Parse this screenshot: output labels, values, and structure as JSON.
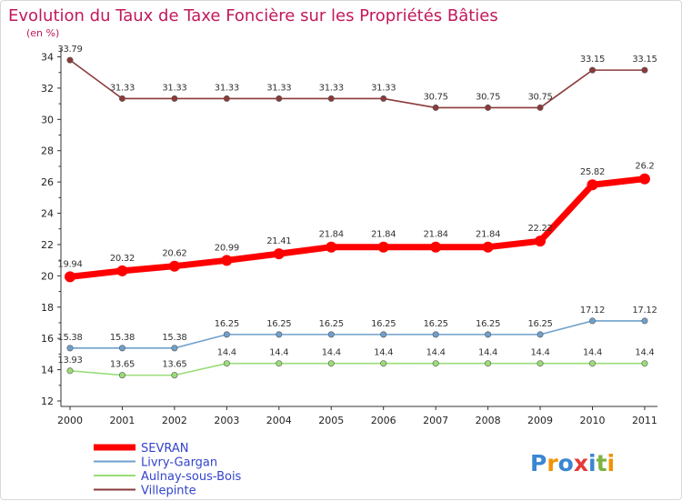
{
  "chart_data": {
    "type": "line",
    "title": "Evolution du Taux de Taxe Foncière sur les Propriétés Bâties",
    "ylabel": "(en %)",
    "xlabel": "",
    "categories": [
      "2000",
      "2001",
      "2002",
      "2003",
      "2004",
      "2005",
      "2006",
      "2007",
      "2008",
      "2009",
      "2010",
      "2011"
    ],
    "y_ticks": [
      12,
      14,
      16,
      18,
      20,
      22,
      24,
      26,
      28,
      30,
      32,
      34
    ],
    "ylim": [
      12,
      34
    ],
    "series": [
      {
        "name": "SEVRAN",
        "color": "#ff0000",
        "emphasis": true,
        "values": [
          19.94,
          20.32,
          20.62,
          20.99,
          21.41,
          21.84,
          21.84,
          21.84,
          21.84,
          22.22,
          25.82,
          26.2
        ],
        "labels": [
          "19.94",
          "20.32",
          "20.62",
          "20.99",
          "21.41",
          "21.84",
          "21.84",
          "21.84",
          "21.84",
          "22.22",
          "25.82",
          "26.2"
        ]
      },
      {
        "name": "Livry-Gargan",
        "color": "#6fa0cc",
        "emphasis": false,
        "values": [
          15.38,
          15.38,
          15.38,
          16.25,
          16.25,
          16.25,
          16.25,
          16.25,
          16.25,
          16.25,
          17.12,
          17.12
        ],
        "labels": [
          "15.38",
          "15.38",
          "15.38",
          "16.25",
          "16.25",
          "16.25",
          "16.25",
          "16.25",
          "16.25",
          "16.25",
          "17.12",
          "17.12"
        ]
      },
      {
        "name": "Aulnay-sous-Bois",
        "color": "#99dd77",
        "emphasis": false,
        "values": [
          13.93,
          13.65,
          13.65,
          14.4,
          14.4,
          14.4,
          14.4,
          14.4,
          14.4,
          14.4,
          14.4,
          14.4
        ],
        "labels": [
          "13.93",
          "13.65",
          "13.65",
          "14.4",
          "14.4",
          "14.4",
          "14.4",
          "14.4",
          "14.4",
          "14.4",
          "14.4",
          "14.4"
        ]
      },
      {
        "name": "Villepinte",
        "color": "#8b3a3a",
        "emphasis": false,
        "values": [
          33.79,
          31.33,
          31.33,
          31.33,
          31.33,
          31.33,
          31.33,
          30.75,
          30.75,
          30.75,
          33.15,
          33.15
        ],
        "labels": [
          "33.79",
          "31.33",
          "31.33",
          "31.33",
          "31.33",
          "31.33",
          "31.33",
          "30.75",
          "30.75",
          "30.75",
          "33.15",
          "33.15"
        ]
      }
    ],
    "legend_position": "bottom-left",
    "grid": false
  },
  "logo": {
    "text": "Proxiti"
  }
}
